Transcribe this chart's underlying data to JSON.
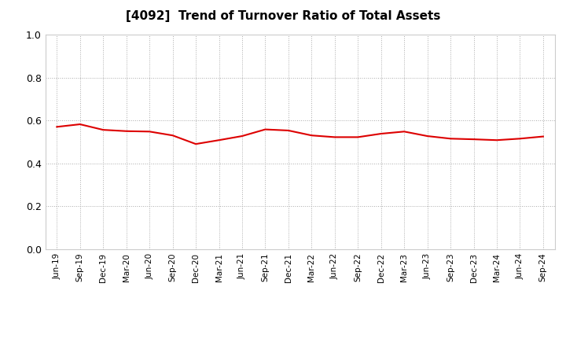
{
  "title": "[4092]  Trend of Turnover Ratio of Total Assets",
  "title_fontsize": 11,
  "line_color": "#dd0000",
  "line_width": 1.5,
  "background_color": "#ffffff",
  "grid_color": "#aaaaaa",
  "ylim": [
    0.0,
    1.0
  ],
  "yticks": [
    0.0,
    0.2,
    0.4,
    0.6,
    0.8,
    1.0
  ],
  "x_labels": [
    "Jun-19",
    "Sep-19",
    "Dec-19",
    "Mar-20",
    "Jun-20",
    "Sep-20",
    "Dec-20",
    "Mar-21",
    "Jun-21",
    "Sep-21",
    "Dec-21",
    "Mar-22",
    "Jun-22",
    "Sep-22",
    "Dec-22",
    "Mar-23",
    "Jun-23",
    "Sep-23",
    "Dec-23",
    "Mar-24",
    "Jun-24",
    "Sep-24"
  ],
  "values": [
    0.57,
    0.582,
    0.556,
    0.55,
    0.548,
    0.53,
    0.49,
    0.508,
    0.527,
    0.558,
    0.553,
    0.53,
    0.522,
    0.522,
    0.538,
    0.548,
    0.527,
    0.515,
    0.512,
    0.508,
    0.515,
    0.525
  ]
}
